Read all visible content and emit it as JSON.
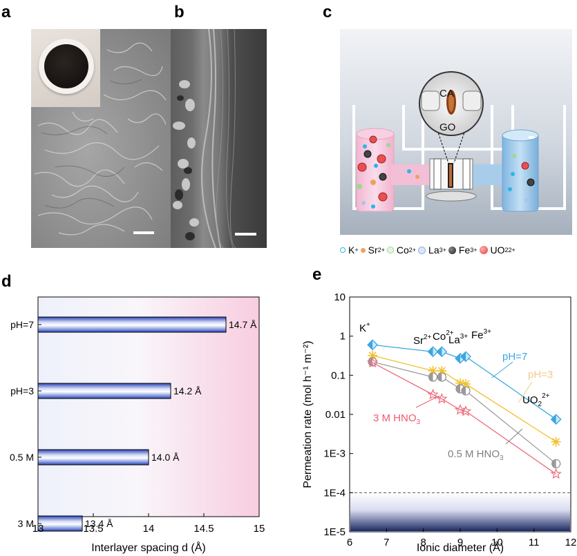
{
  "panels": {
    "a": {
      "label": "a"
    },
    "b": {
      "label": "b"
    },
    "c": {
      "label": "c",
      "zoom_labels": [
        "CA",
        "GO"
      ],
      "legend": [
        {
          "ion": "K",
          "charge": "+",
          "color": "#29b6e8"
        },
        {
          "ion": "Sr",
          "charge": "2+",
          "color": "#f0a060"
        },
        {
          "ion": "Co",
          "charge": "2+",
          "color": "#9fd890"
        },
        {
          "ion": "La",
          "charge": "3+",
          "color": "#a8c4e8"
        },
        {
          "ion": "Fe",
          "charge": "3+",
          "color": "#444444"
        },
        {
          "ion": "UO",
          "sub": "2",
          "charge": "2+",
          "color": "#e53b3b"
        }
      ]
    },
    "d": {
      "label": "d"
    },
    "e": {
      "label": "e"
    }
  },
  "chart_data": [
    {
      "id": "d",
      "type": "bar",
      "orientation": "horizontal",
      "categories": [
        "pH=7",
        "pH=3",
        "0.5 M",
        "3 M"
      ],
      "values": [
        14.7,
        14.2,
        14.0,
        13.4
      ],
      "value_labels": [
        "14.7 Å",
        "14.2 Å",
        "14.0 Å",
        "13.4 Å"
      ],
      "xlabel": "Interlayer spacing d (Å)",
      "xlim": [
        13,
        15
      ],
      "xticks": [
        13,
        13.5,
        14,
        14.5,
        15
      ],
      "xtick_labels": [
        "13",
        "13.5",
        "14",
        "14.5",
        "15"
      ],
      "bar_color": "#3a58c8"
    },
    {
      "id": "e",
      "type": "scatter",
      "xlabel": "Ionic diameter  (Å)",
      "ylabel": "Permeation rate (mol h⁻¹ m⁻²)",
      "xlim": [
        6,
        12
      ],
      "xticks": [
        6,
        7,
        8,
        9,
        10,
        11,
        12
      ],
      "yscale": "log",
      "ylim": [
        1e-05,
        10
      ],
      "ytick_values": [
        10,
        1,
        0.1,
        0.01,
        0.001,
        0.0001,
        1e-05
      ],
      "ytick_labels": [
        "10",
        "1",
        "0.1",
        "0.01",
        "1E-3",
        "1E-4",
        "1E-5"
      ],
      "x": [
        6.62,
        8.26,
        8.5,
        9.0,
        9.15,
        11.6
      ],
      "ion_labels": [
        {
          "text": "K",
          "sup": "+"
        },
        {
          "text": "Sr",
          "sup": "2+"
        },
        {
          "text": "Co",
          "sup": "2+"
        },
        {
          "text": "La",
          "sup": "3+"
        },
        {
          "text": "Fe",
          "sup": "3+"
        },
        {
          "text": "UO",
          "sub": "2",
          "sup": "2+"
        }
      ],
      "detection_limit": 0.0001,
      "series": [
        {
          "name": "pH=7",
          "color": "#3aa6e2",
          "marker": "diamond",
          "values": [
            0.6,
            0.4,
            0.4,
            0.27,
            0.3,
            0.0075
          ]
        },
        {
          "name": "pH=3",
          "color": "#f2c12e",
          "marker": "asterisk",
          "values": [
            0.32,
            0.13,
            0.13,
            0.063,
            0.06,
            0.002
          ]
        },
        {
          "name": "0.5 M HNO3",
          "color": "#a0a0a0",
          "marker": "circle",
          "values": [
            0.22,
            0.09,
            0.09,
            0.045,
            0.04,
            0.00055
          ]
        },
        {
          "name": "3 M HNO3",
          "color": "#ee6b7b",
          "marker": "star",
          "values": [
            0.21,
            0.032,
            0.025,
            0.013,
            0.012,
            0.0003
          ]
        }
      ],
      "annotations": [
        {
          "text": "pH=7",
          "color": "#3aa6e2"
        },
        {
          "text": "pH=3",
          "color": "#f2c98a"
        },
        {
          "text": "3 M HNO",
          "sub": "3",
          "color": "#ee5a6f"
        },
        {
          "text": "0.5 M HNO",
          "sub": "3",
          "color": "#808080"
        }
      ]
    }
  ]
}
